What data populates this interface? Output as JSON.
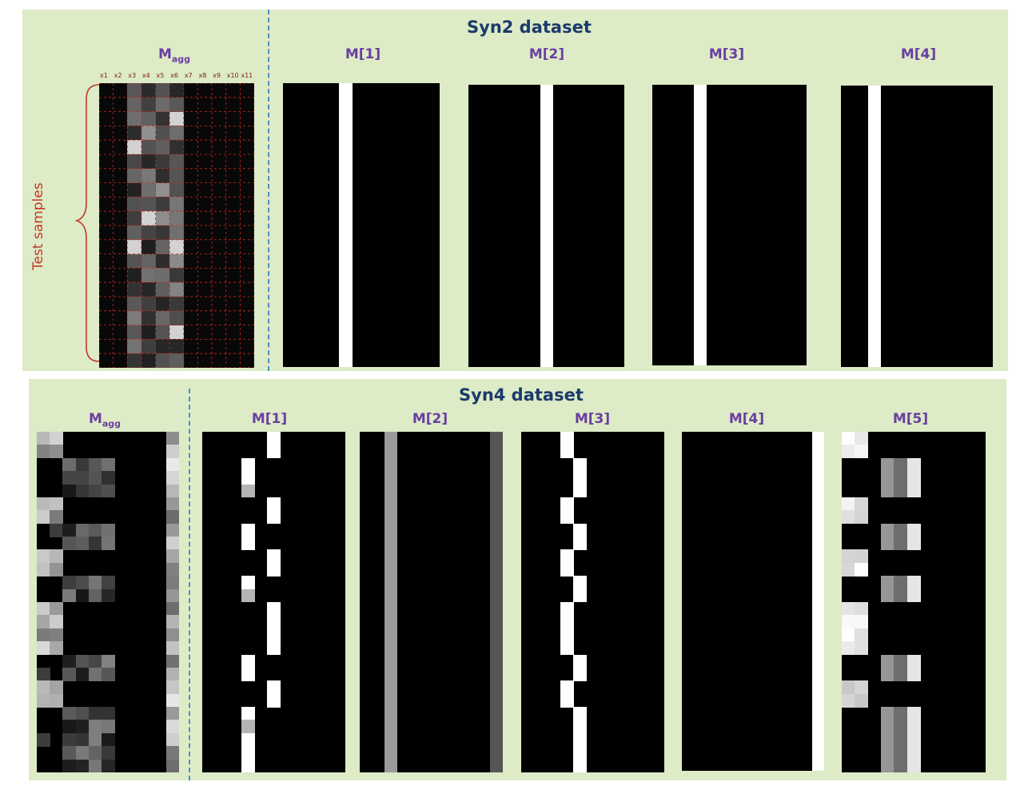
{
  "syn2": {
    "title": "Syn2 dataset",
    "magg_label": "M",
    "magg_sub": "agg",
    "test_samples_label": "Test samples",
    "feature_labels": [
      "x1",
      "x2",
      "x3",
      "x4",
      "x5",
      "x6",
      "x7",
      "x8",
      "x9",
      "x10",
      "x11"
    ],
    "mask_labels": [
      "M[1]",
      "M[2]",
      "M[3]",
      "M[4]"
    ]
  },
  "syn4": {
    "title": "Syn4 dataset",
    "magg_label": "M",
    "magg_sub": "agg",
    "mask_labels": [
      "M[1]",
      "M[2]",
      "M[3]",
      "M[4]",
      "M[5]"
    ]
  },
  "colors": {
    "panel_bg": "#ddebc6",
    "title": "#1b3a6b",
    "mask_label": "#6a3fa0",
    "divider": "#4a90c8",
    "brace": "#c0392b",
    "grid": "#d62020"
  }
}
